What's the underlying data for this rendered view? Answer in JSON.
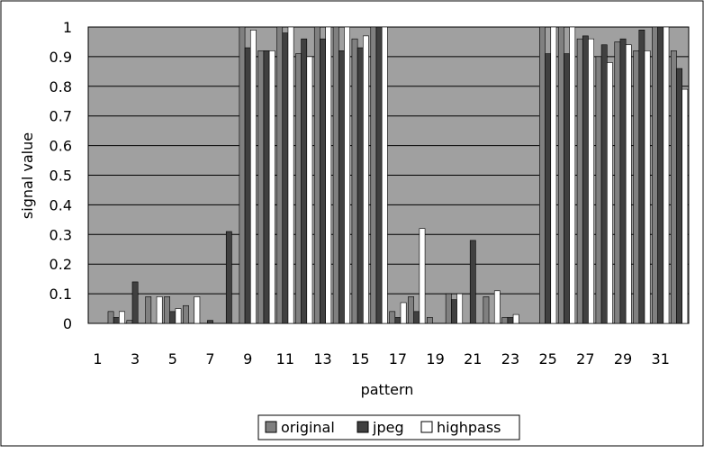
{
  "chart_data": {
    "type": "bar",
    "title": "",
    "xlabel": "pattern",
    "ylabel": "signal value",
    "ylim": [
      0,
      1
    ],
    "yticks": [
      "0",
      "0.1",
      "0.2",
      "0.3",
      "0.4",
      "0.5",
      "0.6",
      "0.7",
      "0.8",
      "0.9",
      "1"
    ],
    "xtick_labels": [
      "1",
      "3",
      "5",
      "7",
      "9",
      "11",
      "13",
      "15",
      "17",
      "19",
      "21",
      "23",
      "25",
      "27",
      "29",
      "31"
    ],
    "categories": [
      "1",
      "2",
      "3",
      "4",
      "5",
      "6",
      "7",
      "8",
      "9",
      "10",
      "11",
      "12",
      "13",
      "14",
      "15",
      "16",
      "17",
      "18",
      "19",
      "20",
      "21",
      "22",
      "23",
      "24",
      "25",
      "26",
      "27",
      "28",
      "29",
      "30",
      "31",
      "32"
    ],
    "grid": "horizontal",
    "legend_position": "bottom",
    "series": [
      {
        "name": "original",
        "color": "#808080",
        "values": [
          0,
          0.04,
          0.01,
          0.09,
          0.09,
          0.06,
          0,
          0,
          1,
          0.92,
          1,
          0.91,
          1,
          1,
          0.96,
          1,
          0.04,
          0.09,
          0.02,
          0.1,
          0,
          0.09,
          0.02,
          0,
          1,
          1,
          0.96,
          0.9,
          0.95,
          0.92,
          1,
          0.92
        ]
      },
      {
        "name": "jpeg",
        "color": "#404040",
        "values": [
          0,
          0.02,
          0.14,
          0,
          0.04,
          0,
          0.01,
          0.31,
          0.93,
          0.92,
          0.98,
          0.96,
          0.96,
          0.92,
          0.93,
          1,
          0.02,
          0.04,
          0,
          0.08,
          0.28,
          0,
          0.02,
          0,
          0.91,
          0.91,
          0.97,
          0.94,
          0.96,
          0.99,
          1,
          0.86
        ]
      },
      {
        "name": "highpass",
        "color": "#ffffff",
        "values": [
          0,
          0.04,
          0,
          0.09,
          0.05,
          0.09,
          0,
          0,
          0.99,
          0.92,
          1,
          0.9,
          1,
          1,
          0.97,
          1,
          0.07,
          0.32,
          0,
          0.1,
          0,
          0.11,
          0.03,
          0,
          1,
          1,
          0.96,
          0.88,
          0.94,
          0.92,
          1,
          0.79
        ]
      }
    ]
  }
}
